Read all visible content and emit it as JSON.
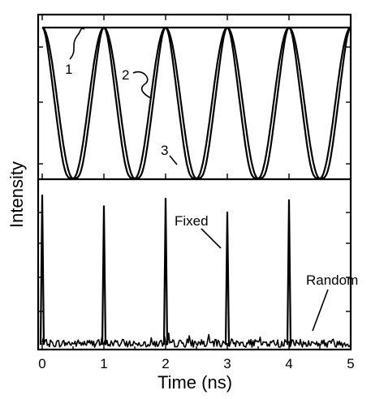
{
  "chart_data": [
    {
      "panel": "top",
      "type": "line",
      "xlim": [
        0,
        5
      ],
      "ylim": [
        0,
        1
      ],
      "grid": false,
      "series": [
        {
          "name": "1",
          "x": [
            0,
            5
          ],
          "y": [
            1,
            1
          ]
        },
        {
          "name": "2",
          "x": [
            0.0,
            0.125,
            0.25,
            0.375,
            0.5,
            0.625,
            0.75,
            0.875,
            1.0,
            1.5,
            2.0,
            2.5,
            3.0,
            3.5,
            4.0,
            4.5,
            5.0
          ],
          "y": [
            1.0,
            0.85,
            0.5,
            0.15,
            0.0,
            0.15,
            0.5,
            0.85,
            1.0,
            0.0,
            1.0,
            0.0,
            1.0,
            0.0,
            1.0,
            0.0,
            1.0
          ]
        },
        {
          "name": "3",
          "x": [
            0.0,
            0.1,
            0.2,
            0.3,
            0.4,
            0.5,
            0.6,
            0.7,
            0.8,
            0.9,
            1.0,
            1.5,
            2.0,
            2.5,
            3.0,
            3.5,
            4.0,
            4.5,
            5.0
          ],
          "y": [
            1.0,
            0.65,
            0.12,
            0.0,
            0.06,
            0.1,
            0.06,
            0.0,
            0.12,
            0.65,
            1.0,
            0.1,
            1.0,
            0.1,
            1.0,
            0.1,
            1.0,
            0.1,
            1.0
          ]
        }
      ],
      "labels": [
        "1",
        "2",
        "3"
      ]
    },
    {
      "panel": "bottom",
      "type": "line",
      "xlim": [
        0,
        5
      ],
      "ylim": [
        0,
        1
      ],
      "grid": false,
      "xlabel": "Time (ns)",
      "xticks": [
        "0",
        "1",
        "2",
        "3",
        "4",
        "5"
      ],
      "series": [
        {
          "name": "Fixed",
          "x": [
            0,
            1,
            2,
            3,
            4
          ],
          "y": [
            1.0,
            0.93,
            0.98,
            0.89,
            0.97
          ]
        },
        {
          "name": "Random",
          "x": [
            0,
            5
          ],
          "y": [
            0.04,
            0.04
          ]
        }
      ],
      "annotations": [
        "Fixed",
        "Random"
      ]
    }
  ],
  "shared": {
    "ylabel": "Intensity"
  }
}
